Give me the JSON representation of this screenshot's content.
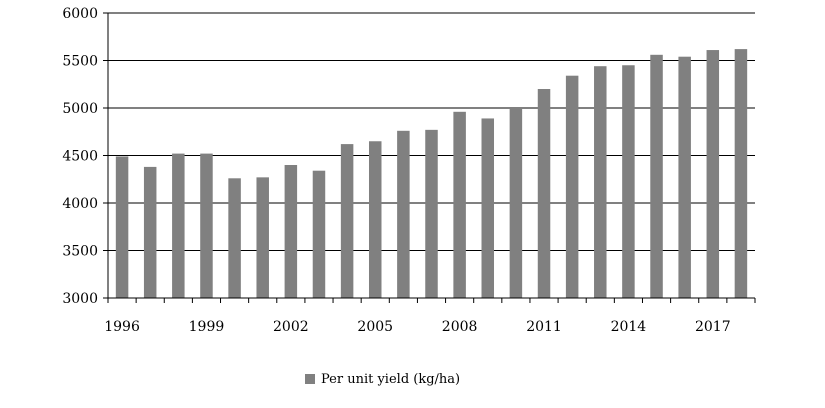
{
  "chart_data": {
    "type": "bar",
    "categories": [
      "1996",
      "1997",
      "1998",
      "1999",
      "2000",
      "2001",
      "2002",
      "2003",
      "2004",
      "2005",
      "2006",
      "2007",
      "2008",
      "2009",
      "2010",
      "2011",
      "2012",
      "2013",
      "2014",
      "2015",
      "2016",
      "2017",
      "2018"
    ],
    "x_tick_labels": [
      "1996",
      "1999",
      "2002",
      "2005",
      "2008",
      "2011",
      "2014",
      "2017"
    ],
    "series": [
      {
        "name": "Per unit yield (kg/ha)",
        "color": "#808080",
        "values": [
          4490,
          4380,
          4520,
          4520,
          4260,
          4270,
          4400,
          4340,
          4620,
          4650,
          4760,
          4770,
          4960,
          4890,
          5000,
          5200,
          5340,
          5440,
          5450,
          5560,
          5540,
          5610,
          5620
        ]
      }
    ],
    "y_ticks": [
      3000,
      3500,
      4000,
      4500,
      5000,
      5500,
      6000
    ],
    "ylim": [
      3000,
      6000
    ],
    "grid": "horizontal",
    "legend_position": "bottom-center",
    "title": "",
    "xlabel": "",
    "ylabel": ""
  }
}
